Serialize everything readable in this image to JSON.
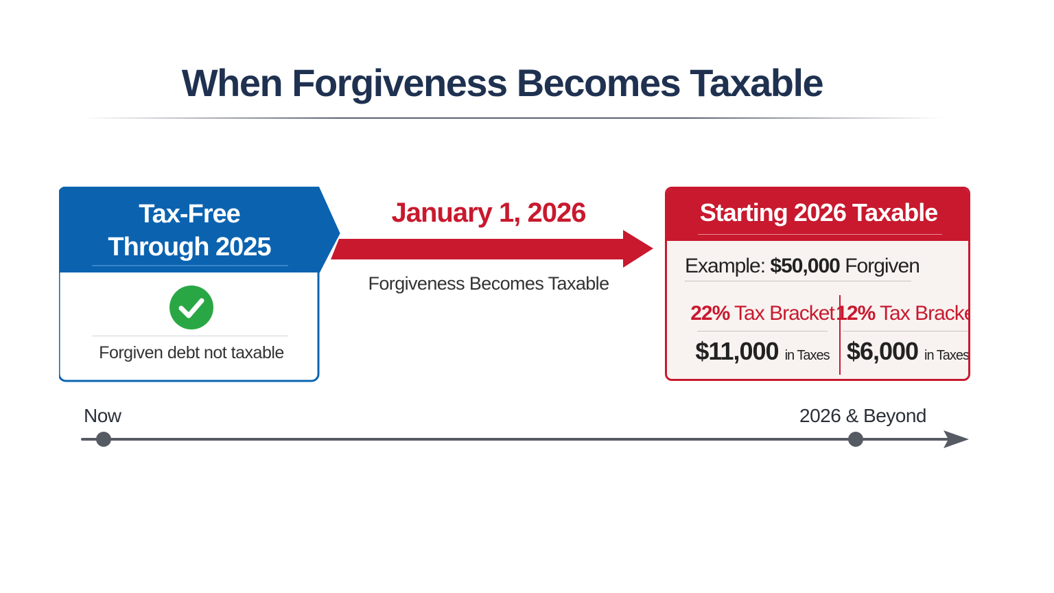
{
  "title": "When Forgiveness Becomes Taxable",
  "colors": {
    "navy": "#1f3150",
    "blue": "#0b63b0",
    "red": "#c8192e",
    "green": "#2aa745",
    "timeline": "#555a63"
  },
  "left_card": {
    "title_line1": "Tax-Free",
    "title_line2": "Through 2025",
    "icon": "check-circle-icon",
    "text": "Forgiven debt not taxable"
  },
  "transition": {
    "date": "January 1, 2026",
    "caption": "Forgiveness Becomes Taxable",
    "icon": "right-arrow-icon"
  },
  "right_card": {
    "title": "Starting 2026 Taxable",
    "example_label": "Example:",
    "example_amount": "$50,000",
    "example_suffix": "Forgiven",
    "brackets": [
      {
        "rate": "22%",
        "label": "Tax Bracket",
        "amount": "$11,000",
        "suffix": "in Taxes"
      },
      {
        "rate": "12%",
        "label": "Tax Bracket",
        "amount": "$6,000",
        "suffix": "in Taxes"
      }
    ]
  },
  "timeline": {
    "start_label": "Now",
    "end_label": "2026 & Beyond"
  }
}
